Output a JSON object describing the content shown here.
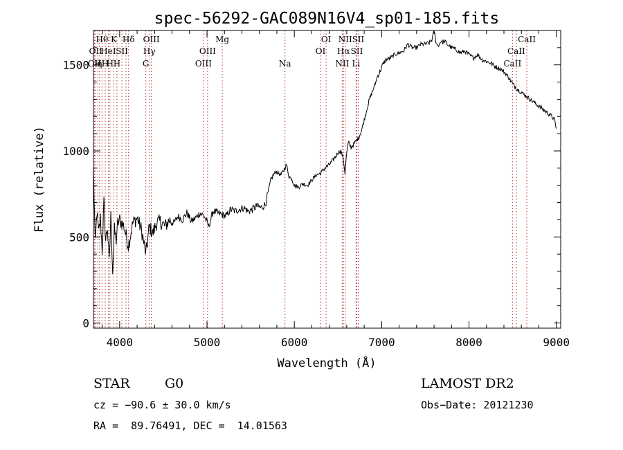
{
  "chart_data": {
    "type": "line",
    "title": "spec-56292-GAC089N16V4_sp01-185.fits",
    "xlabel": "Wavelength (Å)",
    "ylabel": "Flux (relative)",
    "xlim": [
      3700,
      9050
    ],
    "ylim": [
      -30,
      1700
    ],
    "x_ticks": [
      4000,
      5000,
      6000,
      7000,
      8000,
      9000
    ],
    "y_ticks": [
      0,
      500,
      1000,
      1500
    ],
    "grid": false,
    "series": [
      {
        "x": [
          3700,
          3720,
          3740,
          3760,
          3780,
          3800,
          3820,
          3840,
          3860,
          3880,
          3900,
          3920,
          3940,
          3960,
          3980,
          4000,
          4050,
          4100,
          4150,
          4200,
          4250,
          4300,
          4340,
          4380,
          4420,
          4470,
          4520,
          4570,
          4620,
          4670,
          4720,
          4770,
          4820,
          4870,
          4920,
          4970,
          5020,
          5070,
          5120,
          5170,
          5220,
          5270,
          5320,
          5370,
          5420,
          5470,
          5520,
          5570,
          5620,
          5670,
          5700,
          5730,
          5760,
          5790,
          5820,
          5850,
          5880,
          5910,
          5940,
          5970,
          6000,
          6050,
          6100,
          6150,
          6200,
          6250,
          6300,
          6350,
          6400,
          6450,
          6500,
          6530,
          6560,
          6580,
          6600,
          6620,
          6650,
          6680,
          6710,
          6740,
          6770,
          6800,
          6830,
          6860,
          6890,
          6920,
          6950,
          6980,
          7010,
          7050,
          7100,
          7150,
          7200,
          7250,
          7300,
          7350,
          7400,
          7450,
          7500,
          7550,
          7580,
          7600,
          7620,
          7640,
          7660,
          7680,
          7700,
          7720,
          7750,
          7800,
          7850,
          7900,
          7950,
          8000,
          8050,
          8100,
          8150,
          8200,
          8250,
          8300,
          8350,
          8400,
          8450,
          8500,
          8550,
          8600,
          8650,
          8700,
          8750,
          8800,
          8850,
          8900,
          8950,
          8980,
          9000
        ],
        "y": [
          900,
          450,
          650,
          520,
          610,
          420,
          700,
          480,
          560,
          350,
          620,
          300,
          540,
          480,
          580,
          600,
          560,
          450,
          580,
          610,
          540,
          400,
          560,
          520,
          580,
          590,
          560,
          600,
          580,
          620,
          600,
          640,
          590,
          610,
          640,
          620,
          560,
          650,
          640,
          630,
          620,
          660,
          650,
          660,
          670,
          650,
          660,
          680,
          670,
          690,
          760,
          830,
          860,
          880,
          870,
          860,
          890,
          920,
          850,
          840,
          800,
          790,
          810,
          800,
          830,
          860,
          870,
          900,
          920,
          950,
          990,
          1000,
          960,
          870,
          990,
          1050,
          1020,
          1040,
          1060,
          1080,
          1120,
          1180,
          1240,
          1300,
          1340,
          1380,
          1430,
          1460,
          1500,
          1530,
          1540,
          1560,
          1570,
          1580,
          1620,
          1600,
          1600,
          1620,
          1620,
          1630,
          1650,
          1700,
          1640,
          1610,
          1620,
          1640,
          1630,
          1640,
          1620,
          1600,
          1590,
          1570,
          1580,
          1560,
          1540,
          1560,
          1530,
          1520,
          1510,
          1490,
          1480,
          1460,
          1430,
          1390,
          1360,
          1340,
          1320,
          1300,
          1280,
          1260,
          1240,
          1220,
          1200,
          1180,
          1130
        ]
      }
    ],
    "line_markers": [
      {
        "x": 3712,
        "labels": [
          "",
          "",
          "OII"
        ]
      },
      {
        "x": 3726,
        "labels": [
          "",
          "OII",
          ""
        ]
      },
      {
        "x": 3750,
        "labels": [
          "",
          "",
          "H"
        ]
      },
      {
        "x": 3770,
        "labels": [
          "",
          "",
          "η"
        ]
      },
      {
        "x": 3798,
        "labels": [
          "Hθ",
          "",
          ""
        ]
      },
      {
        "x": 3835,
        "labels": [
          "",
          "",
          "H"
        ]
      },
      {
        "x": 3870,
        "labels": [
          "",
          "HeI",
          ""
        ]
      },
      {
        "x": 3889,
        "labels": [
          "",
          "",
          "H"
        ]
      },
      {
        "x": 3934,
        "labels": [
          "K",
          "",
          ""
        ]
      },
      {
        "x": 3969,
        "labels": [
          "",
          "",
          "H"
        ]
      },
      {
        "x": 4026,
        "labels": [
          "",
          "SII",
          ""
        ]
      },
      {
        "x": 4072,
        "labels": [
          "",
          "",
          ""
        ]
      },
      {
        "x": 4102,
        "labels": [
          "Hδ",
          "",
          ""
        ]
      },
      {
        "x": 4300,
        "labels": [
          "",
          "",
          "G"
        ]
      },
      {
        "x": 4340,
        "labels": [
          "",
          "Hγ",
          ""
        ]
      },
      {
        "x": 4363,
        "labels": [
          "OIII",
          "",
          ""
        ]
      },
      {
        "x": 4959,
        "labels": [
          "",
          "",
          "OIII"
        ]
      },
      {
        "x": 5007,
        "labels": [
          "",
          "OIII",
          ""
        ]
      },
      {
        "x": 5175,
        "labels": [
          "Mg",
          "",
          ""
        ]
      },
      {
        "x": 5893,
        "labels": [
          "",
          "",
          "Na"
        ]
      },
      {
        "x": 6300,
        "labels": [
          "",
          "OI",
          ""
        ]
      },
      {
        "x": 6364,
        "labels": [
          "OI",
          "",
          ""
        ]
      },
      {
        "x": 6548,
        "labels": [
          "",
          "",
          "NII"
        ]
      },
      {
        "x": 6563,
        "labels": [
          "",
          "Hα",
          ""
        ]
      },
      {
        "x": 6583,
        "labels": [
          "NII",
          "",
          ""
        ]
      },
      {
        "x": 6707,
        "labels": [
          "",
          "",
          "Li"
        ]
      },
      {
        "x": 6716,
        "labels": [
          "",
          "SII",
          ""
        ]
      },
      {
        "x": 6731,
        "labels": [
          "SII",
          "",
          ""
        ]
      },
      {
        "x": 8498,
        "labels": [
          "",
          "",
          "CaII"
        ]
      },
      {
        "x": 8542,
        "labels": [
          "",
          "CaII",
          ""
        ]
      },
      {
        "x": 8662,
        "labels": [
          "CaII",
          "",
          ""
        ]
      }
    ]
  },
  "info": {
    "object_class": "STAR",
    "subclass": "G0",
    "survey": "LAMOST DR2",
    "cz": "cz = −90.6 ± 30.0 km/s",
    "obs_date": "Obs−Date: 20121230",
    "radec": "RA =  89.76491, DEC =  14.01563"
  }
}
